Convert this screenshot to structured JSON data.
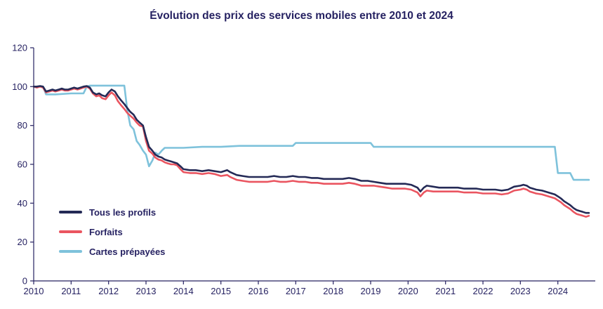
{
  "chart_data": {
    "type": "line",
    "title": "Évolution des prix des services mobiles entre 2010 et 2024",
    "xlabel": "",
    "ylabel": "",
    "grid": false,
    "legend_position": "inside-bottom-left",
    "x_axis": {
      "min": 2010,
      "max": 2025,
      "ticks": [
        2010,
        2011,
        2012,
        2013,
        2014,
        2015,
        2016,
        2017,
        2018,
        2019,
        2020,
        2021,
        2022,
        2023,
        2024
      ]
    },
    "y_axis": {
      "min": 0,
      "max": 120,
      "ticks": [
        0,
        20,
        40,
        60,
        80,
        100,
        120
      ]
    },
    "colors": {
      "axis": "#262262",
      "tick_label": "#262262",
      "title": "#262262"
    },
    "series": [
      {
        "name": "Tous les profils",
        "color": "#242A56",
        "points": [
          [
            2010,
            100
          ],
          [
            2010.08,
            100
          ],
          [
            2010.17,
            100.3
          ],
          [
            2010.25,
            100
          ],
          [
            2010.33,
            97.5
          ],
          [
            2010.42,
            98
          ],
          [
            2010.5,
            98.5
          ],
          [
            2010.58,
            98
          ],
          [
            2010.67,
            98.5
          ],
          [
            2010.75,
            99
          ],
          [
            2010.83,
            98.5
          ],
          [
            2010.92,
            98.5
          ],
          [
            2011,
            99
          ],
          [
            2011.08,
            99.5
          ],
          [
            2011.17,
            99
          ],
          [
            2011.25,
            99.5
          ],
          [
            2011.33,
            100
          ],
          [
            2011.42,
            100.3
          ],
          [
            2011.5,
            99.5
          ],
          [
            2011.58,
            97
          ],
          [
            2011.67,
            96
          ],
          [
            2011.75,
            96.5
          ],
          [
            2011.83,
            95.5
          ],
          [
            2011.92,
            95
          ],
          [
            2012,
            97
          ],
          [
            2012.08,
            98.5
          ],
          [
            2012.17,
            97.5
          ],
          [
            2012.25,
            95
          ],
          [
            2012.33,
            93
          ],
          [
            2012.42,
            91
          ],
          [
            2012.5,
            89
          ],
          [
            2012.58,
            87
          ],
          [
            2012.67,
            85.5
          ],
          [
            2012.75,
            83
          ],
          [
            2012.83,
            81.5
          ],
          [
            2012.92,
            80
          ],
          [
            2013,
            74
          ],
          [
            2013.08,
            69
          ],
          [
            2013.17,
            67
          ],
          [
            2013.25,
            65
          ],
          [
            2013.33,
            64
          ],
          [
            2013.42,
            63.5
          ],
          [
            2013.5,
            62.5
          ],
          [
            2013.58,
            62
          ],
          [
            2013.67,
            61.5
          ],
          [
            2013.75,
            61
          ],
          [
            2013.83,
            60.5
          ],
          [
            2013.92,
            59
          ],
          [
            2014,
            57.5
          ],
          [
            2014.17,
            57
          ],
          [
            2014.33,
            57
          ],
          [
            2014.5,
            56.5
          ],
          [
            2014.67,
            57
          ],
          [
            2014.83,
            56.5
          ],
          [
            2015,
            56
          ],
          [
            2015.17,
            57
          ],
          [
            2015.25,
            56
          ],
          [
            2015.42,
            54.5
          ],
          [
            2015.58,
            54
          ],
          [
            2015.75,
            53.5
          ],
          [
            2015.92,
            53.5
          ],
          [
            2016.08,
            53.5
          ],
          [
            2016.25,
            53.5
          ],
          [
            2016.42,
            54
          ],
          [
            2016.58,
            53.5
          ],
          [
            2016.75,
            53.5
          ],
          [
            2016.92,
            54
          ],
          [
            2017.08,
            53.5
          ],
          [
            2017.25,
            53.5
          ],
          [
            2017.42,
            53
          ],
          [
            2017.58,
            53
          ],
          [
            2017.75,
            52.5
          ],
          [
            2017.92,
            52.5
          ],
          [
            2018.08,
            52.5
          ],
          [
            2018.25,
            52.5
          ],
          [
            2018.42,
            53
          ],
          [
            2018.58,
            52.5
          ],
          [
            2018.75,
            51.5
          ],
          [
            2018.92,
            51.5
          ],
          [
            2019.08,
            51
          ],
          [
            2019.25,
            50.5
          ],
          [
            2019.42,
            50
          ],
          [
            2019.58,
            50
          ],
          [
            2019.75,
            50
          ],
          [
            2019.92,
            50
          ],
          [
            2020.08,
            49.5
          ],
          [
            2020.25,
            48
          ],
          [
            2020.33,
            46
          ],
          [
            2020.42,
            48
          ],
          [
            2020.5,
            49
          ],
          [
            2020.67,
            48.5
          ],
          [
            2020.83,
            48
          ],
          [
            2021,
            48
          ],
          [
            2021.17,
            48
          ],
          [
            2021.33,
            48
          ],
          [
            2021.5,
            47.5
          ],
          [
            2021.67,
            47.5
          ],
          [
            2021.83,
            47.5
          ],
          [
            2022,
            47
          ],
          [
            2022.17,
            47
          ],
          [
            2022.33,
            47
          ],
          [
            2022.5,
            46.5
          ],
          [
            2022.67,
            47
          ],
          [
            2022.83,
            48.5
          ],
          [
            2023,
            49
          ],
          [
            2023.08,
            49.5
          ],
          [
            2023.17,
            49
          ],
          [
            2023.25,
            48
          ],
          [
            2023.42,
            47
          ],
          [
            2023.58,
            46.5
          ],
          [
            2023.75,
            45.5
          ],
          [
            2023.92,
            44.5
          ],
          [
            2024,
            43.5
          ],
          [
            2024.08,
            42.5
          ],
          [
            2024.17,
            41
          ],
          [
            2024.25,
            40
          ],
          [
            2024.33,
            39
          ],
          [
            2024.42,
            37.5
          ],
          [
            2024.5,
            36.5
          ],
          [
            2024.58,
            36
          ],
          [
            2024.67,
            35.5
          ],
          [
            2024.75,
            35
          ],
          [
            2024.83,
            35
          ]
        ]
      },
      {
        "name": "Forfaits",
        "color": "#EA5560",
        "points": [
          [
            2010,
            100
          ],
          [
            2010.08,
            99.5
          ],
          [
            2010.17,
            100
          ],
          [
            2010.25,
            99.5
          ],
          [
            2010.33,
            97
          ],
          [
            2010.42,
            97.5
          ],
          [
            2010.5,
            98
          ],
          [
            2010.58,
            97.5
          ],
          [
            2010.67,
            98
          ],
          [
            2010.75,
            98.5
          ],
          [
            2010.83,
            98
          ],
          [
            2010.92,
            98
          ],
          [
            2011,
            98.5
          ],
          [
            2011.08,
            99
          ],
          [
            2011.17,
            98.5
          ],
          [
            2011.25,
            99
          ],
          [
            2011.33,
            99.5
          ],
          [
            2011.42,
            100
          ],
          [
            2011.5,
            99
          ],
          [
            2011.58,
            96.5
          ],
          [
            2011.67,
            95
          ],
          [
            2011.75,
            95.5
          ],
          [
            2011.83,
            94
          ],
          [
            2011.92,
            93.5
          ],
          [
            2012,
            95.5
          ],
          [
            2012.08,
            97
          ],
          [
            2012.17,
            95.5
          ],
          [
            2012.25,
            92.5
          ],
          [
            2012.33,
            90.5
          ],
          [
            2012.42,
            88.5
          ],
          [
            2012.5,
            86.5
          ],
          [
            2012.58,
            85
          ],
          [
            2012.67,
            83.5
          ],
          [
            2012.75,
            81.5
          ],
          [
            2012.83,
            80
          ],
          [
            2012.92,
            79.5
          ],
          [
            2013,
            72
          ],
          [
            2013.08,
            67
          ],
          [
            2013.17,
            65.5
          ],
          [
            2013.25,
            63.5
          ],
          [
            2013.33,
            62.5
          ],
          [
            2013.42,
            62
          ],
          [
            2013.5,
            61
          ],
          [
            2013.58,
            60.5
          ],
          [
            2013.67,
            60
          ],
          [
            2013.75,
            60
          ],
          [
            2013.83,
            59.5
          ],
          [
            2013.92,
            57.5
          ],
          [
            2014,
            56
          ],
          [
            2014.17,
            55.5
          ],
          [
            2014.33,
            55.5
          ],
          [
            2014.5,
            55
          ],
          [
            2014.67,
            55.5
          ],
          [
            2014.83,
            55
          ],
          [
            2015,
            54
          ],
          [
            2015.17,
            54.5
          ],
          [
            2015.25,
            53.5
          ],
          [
            2015.42,
            52
          ],
          [
            2015.58,
            51.5
          ],
          [
            2015.75,
            51
          ],
          [
            2015.92,
            51
          ],
          [
            2016.08,
            51
          ],
          [
            2016.25,
            51
          ],
          [
            2016.42,
            51.5
          ],
          [
            2016.58,
            51
          ],
          [
            2016.75,
            51
          ],
          [
            2016.92,
            51.5
          ],
          [
            2017.08,
            51
          ],
          [
            2017.25,
            51
          ],
          [
            2017.42,
            50.5
          ],
          [
            2017.58,
            50.5
          ],
          [
            2017.75,
            50
          ],
          [
            2017.92,
            50
          ],
          [
            2018.08,
            50
          ],
          [
            2018.25,
            50
          ],
          [
            2018.42,
            50.5
          ],
          [
            2018.58,
            50
          ],
          [
            2018.75,
            49
          ],
          [
            2018.92,
            49
          ],
          [
            2019.08,
            49
          ],
          [
            2019.25,
            48.5
          ],
          [
            2019.42,
            48
          ],
          [
            2019.58,
            47.5
          ],
          [
            2019.75,
            47.5
          ],
          [
            2019.92,
            47.5
          ],
          [
            2020.08,
            47
          ],
          [
            2020.25,
            45.5
          ],
          [
            2020.33,
            43.5
          ],
          [
            2020.42,
            45.5
          ],
          [
            2020.5,
            46.5
          ],
          [
            2020.67,
            46
          ],
          [
            2020.83,
            46
          ],
          [
            2021,
            46
          ],
          [
            2021.17,
            46
          ],
          [
            2021.33,
            46
          ],
          [
            2021.5,
            45.5
          ],
          [
            2021.67,
            45.5
          ],
          [
            2021.83,
            45.5
          ],
          [
            2022,
            45
          ],
          [
            2022.17,
            45
          ],
          [
            2022.33,
            45
          ],
          [
            2022.5,
            44.5
          ],
          [
            2022.67,
            45
          ],
          [
            2022.83,
            46.5
          ],
          [
            2023,
            47
          ],
          [
            2023.08,
            47.5
          ],
          [
            2023.17,
            47
          ],
          [
            2023.25,
            46
          ],
          [
            2023.42,
            45
          ],
          [
            2023.58,
            44.5
          ],
          [
            2023.75,
            43.5
          ],
          [
            2023.92,
            42.5
          ],
          [
            2024,
            41.5
          ],
          [
            2024.08,
            40.5
          ],
          [
            2024.17,
            39
          ],
          [
            2024.25,
            38
          ],
          [
            2024.33,
            37
          ],
          [
            2024.42,
            35.5
          ],
          [
            2024.5,
            34.5
          ],
          [
            2024.58,
            34
          ],
          [
            2024.67,
            33.5
          ],
          [
            2024.75,
            33
          ],
          [
            2024.83,
            33.5
          ]
        ]
      },
      {
        "name": "Cartes prépayées",
        "color": "#7EC2DB",
        "points": [
          [
            2010,
            100
          ],
          [
            2010.25,
            100
          ],
          [
            2010.33,
            96
          ],
          [
            2010.58,
            96
          ],
          [
            2011,
            96.5
          ],
          [
            2011.33,
            96.5
          ],
          [
            2011.42,
            100
          ],
          [
            2011.5,
            100.5
          ],
          [
            2012,
            100.5
          ],
          [
            2012.42,
            100.5
          ],
          [
            2012.5,
            88
          ],
          [
            2012.58,
            80
          ],
          [
            2012.67,
            78
          ],
          [
            2012.75,
            72
          ],
          [
            2012.83,
            70
          ],
          [
            2012.92,
            67
          ],
          [
            2013,
            65
          ],
          [
            2013.08,
            59
          ],
          [
            2013.17,
            62
          ],
          [
            2013.25,
            66
          ],
          [
            2013.33,
            65
          ],
          [
            2013.42,
            67
          ],
          [
            2013.5,
            68.5
          ],
          [
            2013.75,
            68.5
          ],
          [
            2014,
            68.5
          ],
          [
            2014.5,
            69
          ],
          [
            2015,
            69
          ],
          [
            2015.5,
            69.5
          ],
          [
            2016,
            69.5
          ],
          [
            2016.5,
            69.5
          ],
          [
            2016.92,
            69.5
          ],
          [
            2017,
            71
          ],
          [
            2017.5,
            71
          ],
          [
            2018,
            71
          ],
          [
            2018.5,
            71
          ],
          [
            2019,
            71
          ],
          [
            2019.08,
            69
          ],
          [
            2019.5,
            69
          ],
          [
            2020,
            69
          ],
          [
            2020.5,
            69
          ],
          [
            2021,
            69
          ],
          [
            2021.5,
            69
          ],
          [
            2022,
            69
          ],
          [
            2022.5,
            69
          ],
          [
            2023,
            69
          ],
          [
            2023.5,
            69
          ],
          [
            2023.92,
            69
          ],
          [
            2024,
            55.5
          ],
          [
            2024.17,
            55.5
          ],
          [
            2024.33,
            55.5
          ],
          [
            2024.42,
            52
          ],
          [
            2024.58,
            52
          ],
          [
            2024.75,
            52
          ],
          [
            2024.83,
            52
          ]
        ]
      }
    ]
  }
}
